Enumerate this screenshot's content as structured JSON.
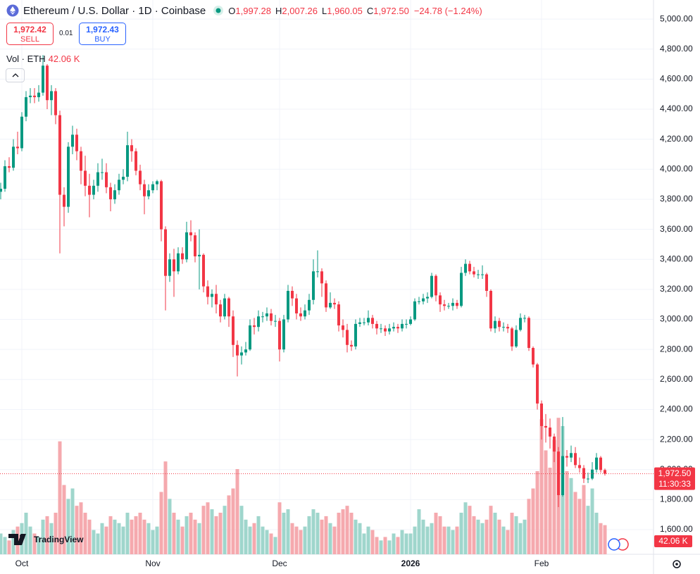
{
  "header": {
    "title": "Ethereum / U.S. Dollar · 1D · Coinbase",
    "ohlc": [
      {
        "key": "O",
        "value": "1,997.28"
      },
      {
        "key": "H",
        "value": "2,007.26"
      },
      {
        "key": "L",
        "value": "1,960.05"
      },
      {
        "key": "C",
        "value": "1,972.50"
      }
    ],
    "change": "−24.78 (−1.24%)",
    "sell_price": "1,972.42",
    "sell": "SELL",
    "spread": "0.01",
    "buy_price": "1,972.43",
    "buy": "BUY",
    "volume_label": "Vol · ETH",
    "volume_value": "42.06 K"
  },
  "price_tag": {
    "price": "1,972.50",
    "countdown": "11:30:33"
  },
  "volume_tag": "42.06 K",
  "logo": "TradingView",
  "chart_data": {
    "type": "candlestick",
    "up_color": "#089981",
    "down_color": "#f23645",
    "volume_up_color": "#9fd6cc",
    "volume_down_color": "#f5a9ae",
    "grid": true,
    "ylim": [
      1436,
      5127
    ],
    "volume_lim": [
      0,
      800
    ],
    "yticks": [
      {
        "value": 1600,
        "label": "1,600.00"
      },
      {
        "value": 1800,
        "label": "1,800.00"
      },
      {
        "value": 2000,
        "label": "2,000.00"
      },
      {
        "value": 2200,
        "label": "2,200.00"
      },
      {
        "value": 2400,
        "label": "2,400.00"
      },
      {
        "value": 2600,
        "label": "2,600.00"
      },
      {
        "value": 2800,
        "label": "2,800.00"
      },
      {
        "value": 3000,
        "label": "3,000.00"
      },
      {
        "value": 3200,
        "label": "3,200.00"
      },
      {
        "value": 3400,
        "label": "3,400.00"
      },
      {
        "value": 3600,
        "label": "3,600.00"
      },
      {
        "value": 3800,
        "label": "3,800.00"
      },
      {
        "value": 4000,
        "label": "4,000.00"
      },
      {
        "value": 4200,
        "label": "4,200.00"
      },
      {
        "value": 4400,
        "label": "4,400.00"
      },
      {
        "value": 4600,
        "label": "4,600.00"
      },
      {
        "value": 4800,
        "label": "4,800.00"
      },
      {
        "value": 5000,
        "label": "5,000.00"
      }
    ],
    "categories": [
      null,
      null,
      null,
      null,
      null,
      "Oct",
      null,
      null,
      null,
      null,
      null,
      null,
      null,
      null,
      null,
      null,
      null,
      null,
      null,
      null,
      null,
      null,
      null,
      null,
      null,
      null,
      null,
      null,
      null,
      null,
      null,
      null,
      null,
      null,
      null,
      null,
      "Nov",
      null,
      null,
      null,
      null,
      null,
      null,
      null,
      null,
      null,
      null,
      null,
      null,
      null,
      null,
      null,
      null,
      null,
      null,
      null,
      null,
      null,
      null,
      null,
      null,
      null,
      null,
      null,
      null,
      null,
      "Dec",
      null,
      null,
      null,
      null,
      null,
      null,
      null,
      null,
      null,
      null,
      null,
      null,
      null,
      null,
      null,
      null,
      null,
      null,
      null,
      null,
      null,
      null,
      null,
      null,
      null,
      null,
      null,
      null,
      null,
      null,
      "2026",
      null,
      null,
      null,
      null,
      null,
      null,
      null,
      null,
      null,
      null,
      null,
      null,
      null,
      null,
      null,
      null,
      null,
      null,
      null,
      null,
      null,
      null,
      null,
      null,
      null,
      null,
      null,
      null,
      null,
      null,
      "Feb",
      null,
      null,
      null,
      null,
      null,
      null,
      null,
      null,
      null,
      null,
      null,
      null,
      null,
      null,
      null
    ],
    "open": [
      3850,
      3870,
      4020,
      4010,
      4150,
      4140,
      4350,
      4480,
      4490,
      4480,
      4510,
      4690,
      4460,
      4520,
      4360,
      3830,
      3750,
      4150,
      4230,
      4120,
      3990,
      3890,
      3830,
      3890,
      3980,
      3980,
      3880,
      3800,
      3860,
      3930,
      3950,
      4160,
      4120,
      3990,
      3900,
      3820,
      3860,
      3900,
      3920,
      3600,
      3290,
      3400,
      3320,
      3440,
      3400,
      3580,
      3560,
      3420,
      3430,
      3220,
      3150,
      3170,
      3100,
      3020,
      3140,
      3020,
      2830,
      2760,
      2780,
      2800,
      2960,
      2950,
      3020,
      3020,
      3040,
      2990,
      2990,
      2800,
      3000,
      3190,
      3140,
      3040,
      3020,
      3060,
      3130,
      3320,
      3320,
      3240,
      3080,
      3110,
      3100,
      2960,
      2930,
      2830,
      2820,
      2970,
      2980,
      2980,
      3010,
      2970,
      2940,
      2940,
      2920,
      2940,
      2950,
      2940,
      2970,
      2970,
      3000,
      3120,
      3120,
      3140,
      3150,
      3290,
      3160,
      3100,
      3090,
      3090,
      3110,
      3090,
      3310,
      3370,
      3320,
      3300,
      3300,
      3300,
      3190,
      2940,
      2990,
      2950,
      2950,
      2940,
      2820,
      2930,
      3010,
      3010,
      2810,
      2700,
      2440,
      2290,
      2280,
      2220,
      2120,
      1830,
      2090,
      2080,
      2110,
      2030,
      2010,
      1940,
      1940,
      2000,
      2080,
      1997.28
    ],
    "high": [
      3910,
      4060,
      4080,
      4200,
      4250,
      4380,
      4520,
      4540,
      4540,
      4560,
      4760,
      4700,
      4560,
      4540,
      4390,
      3880,
      4180,
      4290,
      4270,
      4150,
      4090,
      3970,
      3930,
      4040,
      4070,
      4040,
      3910,
      3900,
      3970,
      4000,
      4250,
      4200,
      4140,
      4030,
      3930,
      3900,
      3920,
      3930,
      3930,
      3620,
      3440,
      3470,
      3480,
      3480,
      3650,
      3660,
      3580,
      3600,
      3440,
      3260,
      3200,
      3230,
      3130,
      3170,
      3150,
      3060,
      2860,
      2820,
      2850,
      3000,
      3010,
      3060,
      3050,
      3080,
      3070,
      3030,
      3010,
      3030,
      3230,
      3220,
      3170,
      3080,
      3100,
      3170,
      3400,
      3460,
      3340,
      3260,
      3180,
      3140,
      3120,
      3000,
      2970,
      2860,
      3000,
      3010,
      3010,
      3060,
      3030,
      2990,
      2970,
      2960,
      2970,
      2980,
      2970,
      3000,
      3000,
      3020,
      3140,
      3150,
      3170,
      3180,
      3310,
      3300,
      3180,
      3130,
      3110,
      3140,
      3130,
      3350,
      3400,
      3390,
      3350,
      3330,
      3360,
      3310,
      3200,
      3020,
      3010,
      2980,
      2970,
      2950,
      2960,
      3040,
      3030,
      3020,
      2820,
      2710,
      2460,
      2370,
      2340,
      2240,
      2150,
      2350,
      2130,
      2160,
      2150,
      2080,
      2030,
      1980,
      2050,
      2110,
      2090,
      2007.26
    ],
    "low": [
      3800,
      3850,
      3980,
      3990,
      4100,
      4120,
      4320,
      4440,
      4440,
      4450,
      4490,
      4400,
      4360,
      4300,
      3440,
      3620,
      3710,
      4100,
      4060,
      3900,
      3820,
      3680,
      3800,
      3850,
      3930,
      3840,
      3720,
      3770,
      3830,
      3900,
      3920,
      4050,
      3960,
      3860,
      3700,
      3800,
      3840,
      3860,
      3520,
      3060,
      3250,
      3150,
      3300,
      3370,
      3380,
      3520,
      3380,
      3200,
      3180,
      3100,
      3080,
      3040,
      2980,
      3000,
      2950,
      2750,
      2620,
      2700,
      2760,
      2790,
      2900,
      2920,
      2980,
      2990,
      2960,
      2950,
      2720,
      2780,
      2980,
      3090,
      3000,
      2990,
      3000,
      3030,
      3100,
      3280,
      3150,
      3050,
      3070,
      3070,
      2920,
      2880,
      2780,
      2790,
      2800,
      2950,
      2960,
      2960,
      2940,
      2900,
      2910,
      2890,
      2900,
      2920,
      2910,
      2920,
      2940,
      2960,
      2990,
      3100,
      3100,
      3110,
      3140,
      3120,
      3050,
      3060,
      3070,
      3060,
      3070,
      3080,
      3290,
      3300,
      3280,
      3270,
      3270,
      3150,
      2920,
      2910,
      2920,
      2920,
      2910,
      2790,
      2810,
      2920,
      2980,
      2790,
      2680,
      2400,
      2200,
      2180,
      2140,
      2050,
      1750,
      1820,
      2020,
      2050,
      2010,
      1980,
      1910,
      1910,
      1930,
      1980,
      1980,
      1960.05
    ],
    "close": [
      3870,
      4020,
      4010,
      4150,
      4140,
      4350,
      4480,
      4490,
      4480,
      4510,
      4690,
      4460,
      4520,
      4360,
      3830,
      3750,
      4150,
      4230,
      4120,
      3990,
      3890,
      3830,
      3890,
      3980,
      3980,
      3880,
      3800,
      3860,
      3930,
      3950,
      4160,
      4120,
      3990,
      3900,
      3820,
      3860,
      3900,
      3920,
      3600,
      3290,
      3400,
      3320,
      3440,
      3400,
      3580,
      3560,
      3420,
      3430,
      3220,
      3150,
      3170,
      3100,
      3020,
      3140,
      3020,
      2830,
      2760,
      2780,
      2800,
      2960,
      2950,
      3020,
      3020,
      3040,
      2990,
      2990,
      2800,
      3000,
      3190,
      3140,
      3040,
      3020,
      3060,
      3130,
      3320,
      3320,
      3240,
      3080,
      3110,
      3100,
      2960,
      2930,
      2830,
      2820,
      2970,
      2980,
      2980,
      3010,
      2970,
      2940,
      2940,
      2920,
      2940,
      2950,
      2940,
      2970,
      2970,
      3000,
      3120,
      3120,
      3140,
      3150,
      3290,
      3160,
      3100,
      3090,
      3090,
      3110,
      3090,
      3310,
      3370,
      3320,
      3300,
      3300,
      3300,
      3190,
      2940,
      2990,
      2950,
      2950,
      2940,
      2820,
      2930,
      3010,
      3010,
      2810,
      2700,
      2440,
      2290,
      2280,
      2220,
      2120,
      1830,
      2090,
      2080,
      2110,
      2030,
      2010,
      1940,
      1940,
      2000,
      2080,
      1997.28,
      1972.5
    ],
    "volume": [
      30,
      25,
      20,
      35,
      40,
      45,
      60,
      40,
      30,
      25,
      50,
      55,
      45,
      60,
      163,
      100,
      80,
      95,
      70,
      75,
      60,
      50,
      35,
      30,
      45,
      40,
      55,
      50,
      45,
      40,
      60,
      50,
      55,
      60,
      50,
      45,
      35,
      40,
      90,
      134,
      80,
      60,
      50,
      40,
      55,
      60,
      50,
      45,
      70,
      75,
      65,
      55,
      60,
      70,
      85,
      95,
      123,
      70,
      50,
      40,
      45,
      55,
      40,
      35,
      30,
      25,
      75,
      60,
      65,
      45,
      40,
      35,
      40,
      55,
      65,
      60,
      50,
      55,
      45,
      40,
      60,
      65,
      70,
      60,
      50,
      45,
      30,
      40,
      35,
      25,
      20,
      25,
      20,
      30,
      25,
      35,
      30,
      30,
      40,
      65,
      50,
      40,
      45,
      60,
      55,
      40,
      40,
      35,
      40,
      60,
      75,
      70,
      55,
      50,
      45,
      50,
      70,
      60,
      50,
      40,
      35,
      60,
      55,
      45,
      50,
      80,
      95,
      120,
      195,
      150,
      125,
      165,
      197,
      185,
      120,
      110,
      90,
      80,
      100,
      70,
      95,
      60,
      45,
      42.06
    ]
  }
}
